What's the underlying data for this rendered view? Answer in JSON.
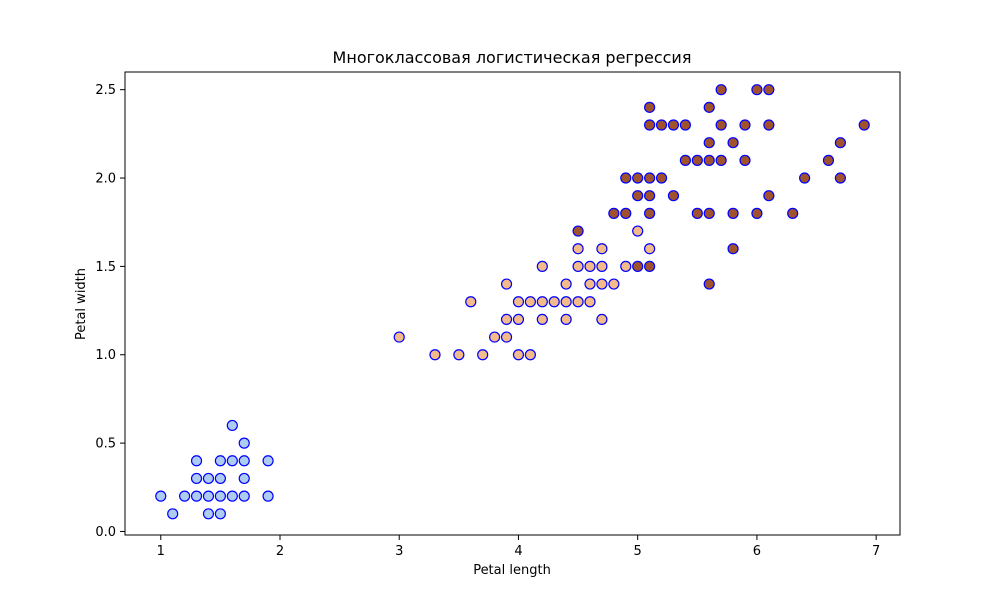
{
  "chart_data": {
    "type": "scatter",
    "title": "Многоклассовая логистическая регрессия",
    "xlabel": "Petal length",
    "ylabel": "Petal width",
    "xlim": [
      0.7,
      7.2
    ],
    "ylim": [
      -0.02,
      2.6
    ],
    "xticks": [
      1,
      2,
      3,
      4,
      5,
      6,
      7
    ],
    "xtick_labels": [
      "1",
      "2",
      "3",
      "4",
      "5",
      "6",
      "7"
    ],
    "yticks": [
      0.0,
      0.5,
      1.0,
      1.5,
      2.0,
      2.5
    ],
    "ytick_labels": [
      "0.0",
      "0.5",
      "1.0",
      "1.5",
      "2.0",
      "2.5"
    ],
    "grid": false,
    "legend": "none",
    "marker_edge_color": "#0000ff",
    "series": [
      {
        "color": "#aecbf0",
        "points": [
          [
            1.0,
            0.2
          ],
          [
            1.1,
            0.1
          ],
          [
            1.2,
            0.2
          ],
          [
            1.3,
            0.2
          ],
          [
            1.3,
            0.3
          ],
          [
            1.3,
            0.4
          ],
          [
            1.4,
            0.1
          ],
          [
            1.4,
            0.2
          ],
          [
            1.4,
            0.3
          ],
          [
            1.5,
            0.1
          ],
          [
            1.5,
            0.2
          ],
          [
            1.5,
            0.3
          ],
          [
            1.5,
            0.4
          ],
          [
            1.6,
            0.2
          ],
          [
            1.6,
            0.4
          ],
          [
            1.6,
            0.6
          ],
          [
            1.7,
            0.2
          ],
          [
            1.7,
            0.3
          ],
          [
            1.7,
            0.4
          ],
          [
            1.7,
            0.5
          ],
          [
            1.9,
            0.2
          ],
          [
            1.9,
            0.4
          ]
        ]
      },
      {
        "color": "#f4bb8a",
        "points": [
          [
            3.0,
            1.1
          ],
          [
            3.3,
            1.0
          ],
          [
            3.5,
            1.0
          ],
          [
            3.6,
            1.3
          ],
          [
            3.7,
            1.0
          ],
          [
            3.8,
            1.1
          ],
          [
            3.9,
            1.1
          ],
          [
            3.9,
            1.2
          ],
          [
            3.9,
            1.4
          ],
          [
            4.0,
            1.0
          ],
          [
            4.0,
            1.2
          ],
          [
            4.0,
            1.3
          ],
          [
            4.1,
            1.0
          ],
          [
            4.1,
            1.3
          ],
          [
            4.2,
            1.2
          ],
          [
            4.2,
            1.3
          ],
          [
            4.2,
            1.5
          ],
          [
            4.3,
            1.3
          ],
          [
            4.4,
            1.2
          ],
          [
            4.4,
            1.3
          ],
          [
            4.4,
            1.4
          ],
          [
            4.5,
            1.3
          ],
          [
            4.5,
            1.5
          ],
          [
            4.5,
            1.6
          ],
          [
            4.6,
            1.3
          ],
          [
            4.6,
            1.4
          ],
          [
            4.6,
            1.5
          ],
          [
            4.7,
            1.2
          ],
          [
            4.7,
            1.4
          ],
          [
            4.7,
            1.5
          ],
          [
            4.7,
            1.6
          ],
          [
            4.8,
            1.4
          ],
          [
            4.9,
            1.5
          ],
          [
            5.0,
            1.7
          ],
          [
            5.1,
            1.6
          ]
        ]
      },
      {
        "color": "#a0522d",
        "points": [
          [
            4.5,
            1.7
          ],
          [
            4.8,
            1.8
          ],
          [
            4.9,
            1.8
          ],
          [
            4.9,
            2.0
          ],
          [
            5.0,
            1.5
          ],
          [
            5.0,
            1.9
          ],
          [
            5.0,
            2.0
          ],
          [
            5.1,
            1.5
          ],
          [
            5.1,
            1.8
          ],
          [
            5.1,
            1.9
          ],
          [
            5.1,
            2.0
          ],
          [
            5.1,
            2.3
          ],
          [
            5.1,
            2.4
          ],
          [
            5.2,
            2.0
          ],
          [
            5.2,
            2.3
          ],
          [
            5.3,
            1.9
          ],
          [
            5.3,
            2.3
          ],
          [
            5.4,
            2.1
          ],
          [
            5.4,
            2.3
          ],
          [
            5.5,
            1.8
          ],
          [
            5.5,
            2.1
          ],
          [
            5.6,
            1.4
          ],
          [
            5.6,
            1.8
          ],
          [
            5.6,
            2.1
          ],
          [
            5.6,
            2.2
          ],
          [
            5.6,
            2.4
          ],
          [
            5.7,
            2.1
          ],
          [
            5.7,
            2.3
          ],
          [
            5.7,
            2.5
          ],
          [
            5.8,
            1.6
          ],
          [
            5.8,
            1.8
          ],
          [
            5.8,
            2.2
          ],
          [
            5.9,
            2.1
          ],
          [
            5.9,
            2.3
          ],
          [
            6.0,
            1.8
          ],
          [
            6.0,
            2.5
          ],
          [
            6.1,
            1.9
          ],
          [
            6.1,
            2.3
          ],
          [
            6.1,
            2.5
          ],
          [
            6.3,
            1.8
          ],
          [
            6.4,
            2.0
          ],
          [
            6.6,
            2.1
          ],
          [
            6.7,
            2.0
          ],
          [
            6.7,
            2.2
          ],
          [
            6.9,
            2.3
          ]
        ]
      }
    ]
  }
}
